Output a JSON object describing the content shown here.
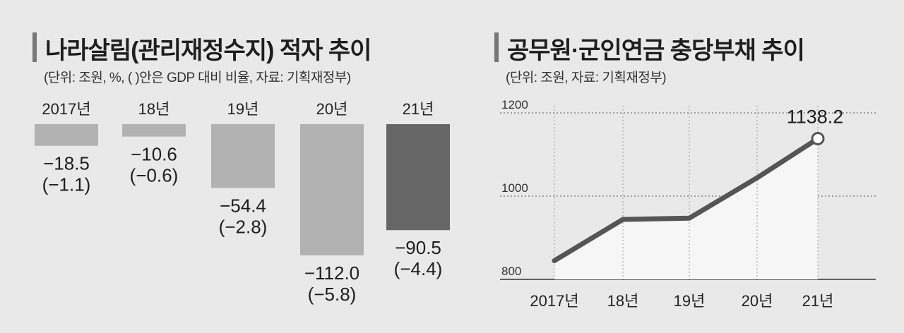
{
  "left_panel": {
    "title": "나라살림(관리재정수지) 적자 추이",
    "unit": "(단위: 조원, %, (    )안은 GDP 대비 비율, 자료: 기획재정부)"
  },
  "right_panel": {
    "title": "공무원·군인연금 충당부채 추이",
    "unit": "(단위: 조원, 자료: 기획재정부)"
  },
  "chart_data": [
    {
      "type": "bar",
      "categories": [
        "2017년",
        "18년",
        "19년",
        "20년",
        "21년"
      ],
      "values": [
        -18.5,
        -10.6,
        -54.4,
        -112.0,
        -90.5
      ],
      "value_labels": [
        "−18.5",
        "−10.6",
        "−54.4",
        "−112.0",
        "−90.5"
      ],
      "ratio_labels": [
        "(−1.1)",
        "(−0.6)",
        "(−2.8)",
        "(−5.8)",
        "(−4.4)"
      ],
      "bar_colors": [
        "#b2b2b2",
        "#b2b2b2",
        "#b2b2b2",
        "#b2b2b2",
        "#666666"
      ]
    },
    {
      "type": "line",
      "x": [
        "2017년",
        "18년",
        "19년",
        "20년",
        "21년"
      ],
      "values": [
        845,
        944,
        947,
        1044,
        1138.2
      ],
      "yticks": [
        "1200",
        "1000",
        "800"
      ],
      "ylim": [
        800,
        1200
      ],
      "grid": true,
      "highlight_label": "1138.2",
      "line_color": "#555555"
    }
  ]
}
